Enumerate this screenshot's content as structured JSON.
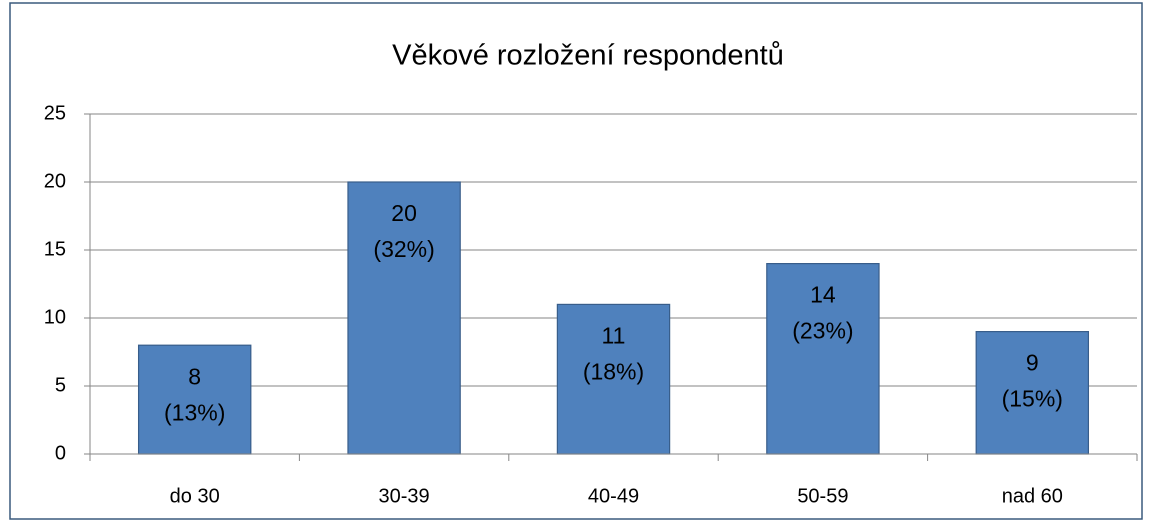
{
  "chart_data": {
    "type": "bar",
    "title": "Věkové rozložení respondentů",
    "categories": [
      "do 30",
      "30-39",
      "40-49",
      "50-59",
      "nad 60"
    ],
    "values": [
      8,
      20,
      11,
      14,
      9
    ],
    "value_labels": [
      [
        "8",
        "(13%)"
      ],
      [
        "20",
        "(32%)"
      ],
      [
        "11",
        "(18%)"
      ],
      [
        "14",
        "(23%)"
      ],
      [
        "9",
        "(15%)"
      ]
    ],
    "color": "#4f81bd",
    "ylim": [
      0,
      25
    ],
    "yticks": [
      0,
      5,
      10,
      15,
      20,
      25
    ],
    "grid": true
  }
}
